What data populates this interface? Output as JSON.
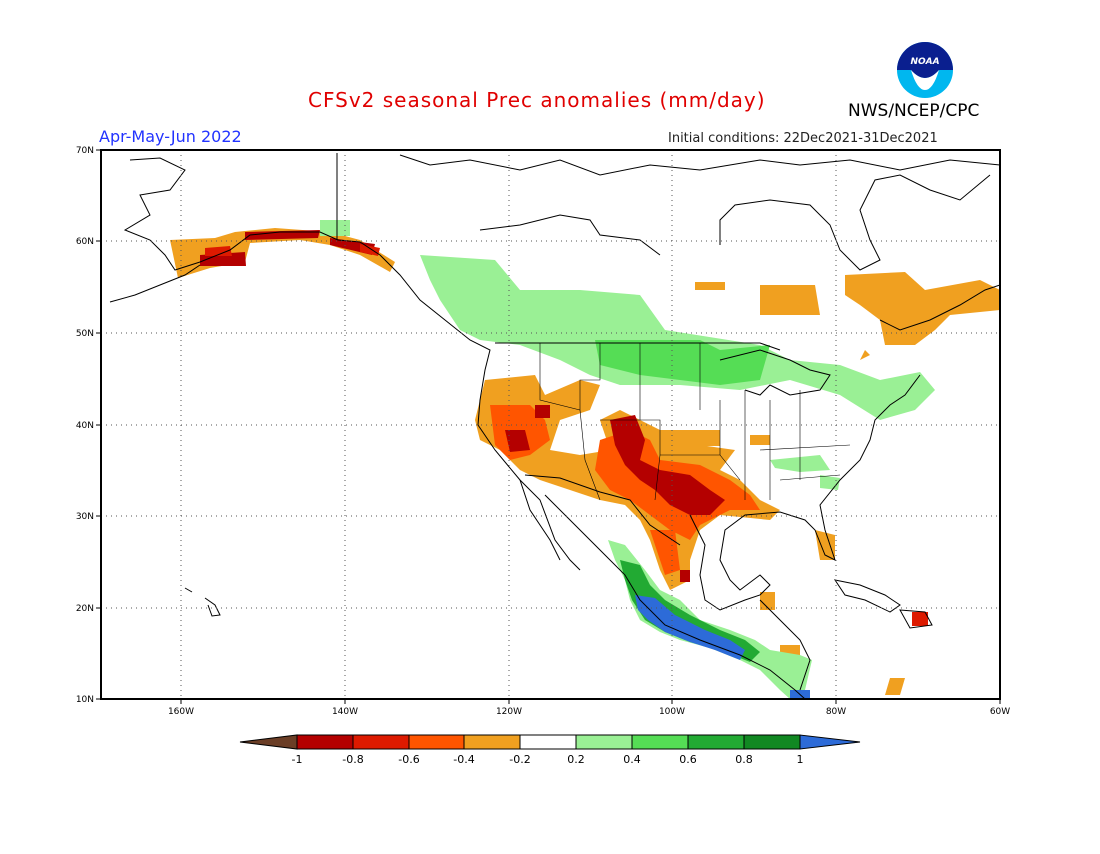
{
  "header": {
    "title": "CFSv2 seasonal Prec anomalies (mm/day)",
    "season": "Apr-May-Jun 2022",
    "initial_conditions": "Initial conditions: 22Dec2021-31Dec2021",
    "agency": "NWS/NCEP/CPC",
    "logo_text": "NOAA"
  },
  "axes": {
    "lat_labels": [
      "70N",
      "60N",
      "50N",
      "40N",
      "30N",
      "20N",
      "10N"
    ],
    "lon_labels": [
      "160W",
      "140W",
      "120W",
      "100W",
      "80W",
      "60W"
    ]
  },
  "legend": {
    "tick_labels": [
      "-1",
      "-0.8",
      "-0.6",
      "-0.4",
      "-0.2",
      "0.2",
      "0.4",
      "0.6",
      "0.8",
      "1"
    ],
    "colors": [
      "#6b3e26",
      "#b40000",
      "#dd1a00",
      "#ff5500",
      "#f0a020",
      "#ffffff",
      "#9af095",
      "#55dd55",
      "#22aa33",
      "#118822",
      "#2d6bd8"
    ]
  },
  "colors": {
    "title": "#e00000",
    "season": "#2233ff",
    "coast": "#000000"
  }
}
